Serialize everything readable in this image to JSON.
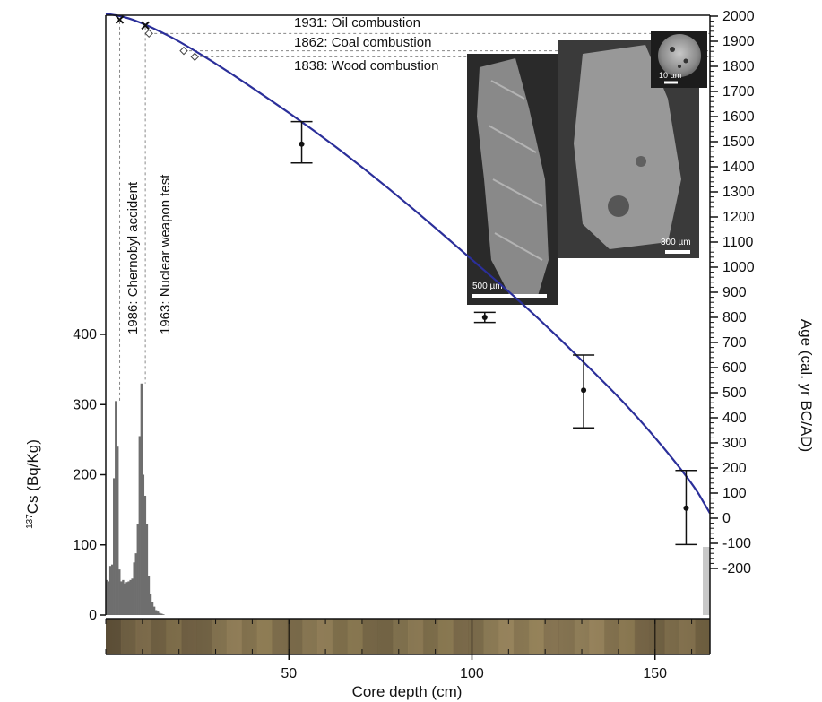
{
  "chart_data": {
    "type": "composite",
    "title": "",
    "xlabel": "Core depth (cm)",
    "xlim": [
      0,
      165
    ],
    "xticks": [
      50,
      100,
      150
    ],
    "left_axis": {
      "label_super": "137",
      "label_rest": "Cs (Bq/Kg)",
      "ylim": [
        0,
        420
      ],
      "ticks": [
        0,
        100,
        200,
        300,
        400
      ]
    },
    "right_axis": {
      "label": "Age (cal. yr BC/AD)",
      "ylim": [
        -260,
        2000
      ],
      "ticks": [
        -200,
        -100,
        0,
        100,
        200,
        300,
        400,
        500,
        600,
        700,
        800,
        900,
        1000,
        1100,
        1200,
        1300,
        1400,
        1500,
        1600,
        1700,
        1800,
        1900,
        2000
      ]
    },
    "cs137_bars": {
      "name": "137Cs",
      "color": "#6e6e6e",
      "depth": [
        0.25,
        0.75,
        1.25,
        1.75,
        2.25,
        2.75,
        3.25,
        3.75,
        4.25,
        4.75,
        5.25,
        5.75,
        6.25,
        6.75,
        7.25,
        7.75,
        8.25,
        8.75,
        9.25,
        9.75,
        10.25,
        10.75,
        11.25,
        11.75,
        12.25,
        12.75,
        13.25,
        13.75,
        14.25,
        14.75,
        15.25,
        15.75
      ],
      "values": [
        50,
        48,
        70,
        72,
        195,
        305,
        240,
        65,
        48,
        50,
        45,
        47,
        48,
        50,
        52,
        75,
        88,
        130,
        255,
        330,
        200,
        170,
        130,
        55,
        30,
        18,
        12,
        7,
        5,
        3,
        2,
        1
      ]
    },
    "age_model_curve": {
      "name": "age model",
      "color": "#2b2f9a",
      "depth": [
        0,
        5,
        10,
        15,
        20,
        30,
        40,
        55,
        70,
        85,
        100,
        115,
        130,
        145,
        160,
        165
      ],
      "age": [
        2010,
        1998,
        1972,
        1938,
        1900,
        1812,
        1715,
        1565,
        1400,
        1220,
        1030,
        840,
        630,
        410,
        145,
        20
      ]
    },
    "radiocarbon_dates": [
      {
        "depth": 53.5,
        "age": 1490,
        "lower": 1415,
        "upper": 1580
      },
      {
        "depth": 103.5,
        "age": 800,
        "lower": 780,
        "upper": 820
      },
      {
        "depth": 130.5,
        "age": 510,
        "lower": 360,
        "upper": 650
      },
      {
        "depth": 158.5,
        "age": 40,
        "lower": -105,
        "upper": 190
      }
    ],
    "cs_markers": [
      {
        "depth": 3.8,
        "age": 1986
      },
      {
        "depth": 10.8,
        "age": 1963
      }
    ],
    "combustion_markers": [
      {
        "depth": 11.8,
        "age": 1931
      },
      {
        "depth": 21.3,
        "age": 1862
      },
      {
        "depth": 24.3,
        "age": 1838
      }
    ],
    "annotations": {
      "chernobyl": "1986: Chernobyl accident",
      "nuclear": "1963: Nuclear weapon test",
      "oil": "1931: Oil combustion",
      "coal": "1862: Coal combustion",
      "wood": "1838: Wood combustion"
    },
    "sem_images": [
      {
        "name": "wood particle",
        "scale": "500 µm"
      },
      {
        "name": "coal particle",
        "scale": "300 µm"
      },
      {
        "name": "oil particle",
        "scale": "10 µm"
      }
    ],
    "core_strip": {
      "colors": [
        "#6b5a3d",
        "#8a7752",
        "#a08a60",
        "#7d6a48",
        "#958055",
        "#6f5e40"
      ]
    },
    "colors": {
      "axis": "#111111",
      "bars": "#6e6e6e",
      "curve": "#2b2f9a",
      "guides": "#888888"
    }
  }
}
